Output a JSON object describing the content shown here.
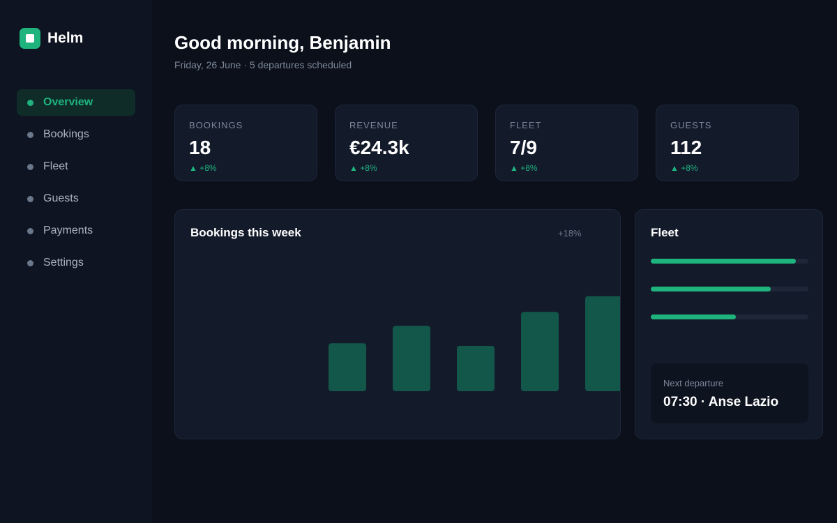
{
  "brand": {
    "name": "Helm",
    "icon": "app-logo-icon",
    "accent": "#1fb37e"
  },
  "sidebar": {
    "items": [
      {
        "label": "Overview",
        "active": true
      },
      {
        "label": "Bookings",
        "active": false
      },
      {
        "label": "Fleet",
        "active": false
      },
      {
        "label": "Guests",
        "active": false
      },
      {
        "label": "Payments",
        "active": false
      },
      {
        "label": "Settings",
        "active": false
      }
    ]
  },
  "header": {
    "greeting": "Good morning, Benjamin",
    "subtitle": "Friday, 26 June · 5 departures scheduled"
  },
  "stats": [
    {
      "label": "BOOKINGS",
      "value": "18",
      "delta": "▲ +8%"
    },
    {
      "label": "REVENUE",
      "value": "€24.3k",
      "delta": "▲ +8%"
    },
    {
      "label": "FLEET",
      "value": "7/9",
      "delta": "▲ +8%"
    },
    {
      "label": "GUESTS",
      "value": "112",
      "delta": "▲ +8%"
    }
  ],
  "bookings_chart": {
    "title": "Bookings this week",
    "delta": "+18%",
    "bar_color": "#12574a"
  },
  "chart_data": {
    "type": "bar",
    "values": [
      0,
      0,
      55,
      75,
      52,
      91,
      109
    ],
    "ylim": [
      0,
      120
    ],
    "title": "Bookings this week",
    "xlabel": "",
    "ylabel": "",
    "grid": false
  },
  "fleet": {
    "title": "Fleet",
    "levels": [
      0.92,
      0.76,
      0.54
    ]
  },
  "next_departure": {
    "label": "Next departure",
    "value": "07:30 · Anse Lazio"
  }
}
